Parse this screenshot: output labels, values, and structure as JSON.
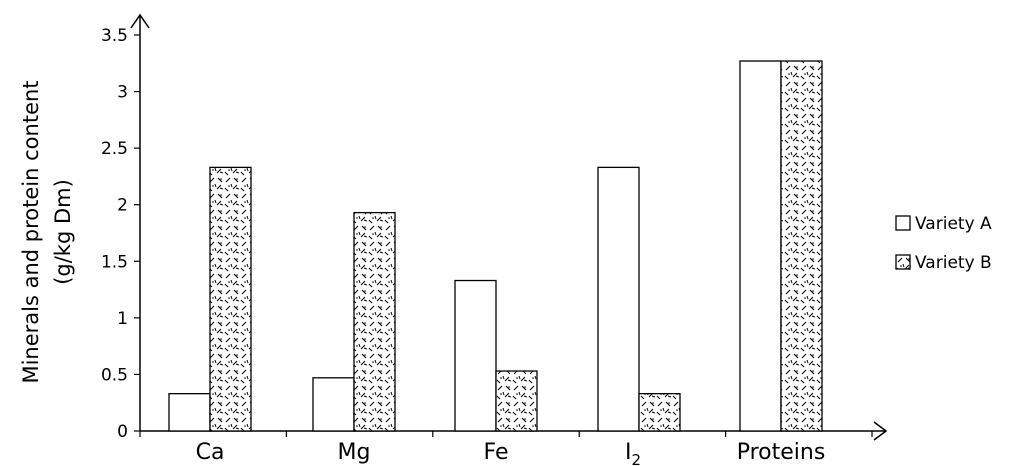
{
  "chart_data": {
    "type": "bar",
    "title": "",
    "xlabel": "",
    "ylabel": "Minerals and protein content",
    "ylabel_unit": "(g/kg Dm)",
    "ylim": [
      0,
      3.5
    ],
    "yticks": [
      "0",
      "0.5",
      "1",
      "1.5",
      "2",
      "2.5",
      "3",
      "3.5"
    ],
    "categories": [
      "Ca",
      "Mg",
      "Fe",
      "I",
      "Proteins"
    ],
    "category_subscripts": [
      "",
      "",
      "",
      "2",
      ""
    ],
    "series": [
      {
        "name": "Variety A",
        "values": [
          0.33,
          0.47,
          1.33,
          2.33,
          3.27
        ],
        "fill": "#ffffff"
      },
      {
        "name": "Variety B",
        "values": [
          2.33,
          1.93,
          0.53,
          0.33,
          3.27
        ],
        "fill": "pattern"
      }
    ],
    "legend": "right",
    "grid": false,
    "colors": {
      "axis": "#000000",
      "bar_stroke": "#000000"
    }
  }
}
